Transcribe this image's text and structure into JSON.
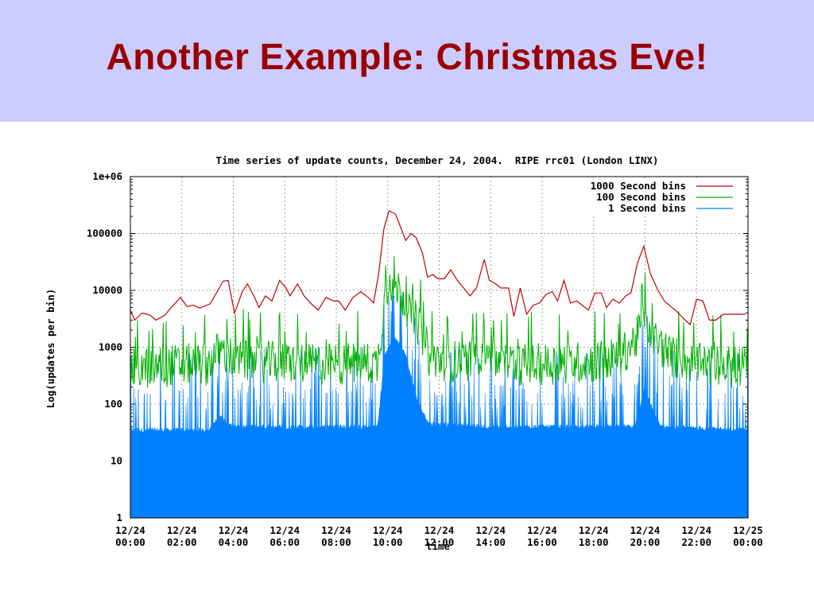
{
  "slide": {
    "title": "Another Example: Christmas Eve!"
  },
  "colors": {
    "header_bg": "#ccccff",
    "title": "#990000",
    "series_1000": "#c00000",
    "series_100": "#00b000",
    "series_1": "#0080ff"
  },
  "chart_data": {
    "type": "line",
    "title": "Time series of update counts, December 24, 2004.  RIPE rrc01 (London LINX)",
    "xlabel": "time",
    "ylabel": "Log(updates per bin)",
    "yscale": "log",
    "ylim": [
      1,
      1000000
    ],
    "xlim_hours": [
      0,
      24
    ],
    "grid": true,
    "legend_position": "top-right",
    "y_ticks": [
      {
        "value": 1,
        "label": "1"
      },
      {
        "value": 10,
        "label": "10"
      },
      {
        "value": 100,
        "label": "100"
      },
      {
        "value": 1000,
        "label": "1000"
      },
      {
        "value": 10000,
        "label": "10000"
      },
      {
        "value": 100000,
        "label": "100000"
      },
      {
        "value": 1000000,
        "label": "1e+06"
      }
    ],
    "x_ticks": [
      {
        "hour": 0,
        "date": "12/24",
        "time": "00:00"
      },
      {
        "hour": 2,
        "date": "12/24",
        "time": "02:00"
      },
      {
        "hour": 4,
        "date": "12/24",
        "time": "04:00"
      },
      {
        "hour": 6,
        "date": "12/24",
        "time": "06:00"
      },
      {
        "hour": 8,
        "date": "12/24",
        "time": "08:00"
      },
      {
        "hour": 10,
        "date": "12/24",
        "time": "10:00"
      },
      {
        "hour": 12,
        "date": "12/24",
        "time": "12:00"
      },
      {
        "hour": 14,
        "date": "12/24",
        "time": "14:00"
      },
      {
        "hour": 16,
        "date": "12/24",
        "time": "16:00"
      },
      {
        "hour": 18,
        "date": "12/24",
        "time": "18:00"
      },
      {
        "hour": 20,
        "date": "12/24",
        "time": "20:00"
      },
      {
        "hour": 22,
        "date": "12/24",
        "time": "22:00"
      },
      {
        "hour": 24,
        "date": "12/25",
        "time": "00:00"
      }
    ],
    "series": [
      {
        "name": "1000 Second bins",
        "color": "#c00000",
        "points": [
          [
            0,
            4500
          ],
          [
            0.17,
            3000
          ],
          [
            0.45,
            4000
          ],
          [
            0.75,
            3700
          ],
          [
            1.0,
            3000
          ],
          [
            1.35,
            3700
          ],
          [
            1.55,
            4800
          ],
          [
            1.95,
            7500
          ],
          [
            2.2,
            5200
          ],
          [
            2.45,
            5500
          ],
          [
            2.7,
            4900
          ],
          [
            3.1,
            5800
          ],
          [
            3.4,
            10000
          ],
          [
            3.6,
            14500
          ],
          [
            3.8,
            15000
          ],
          [
            4.05,
            4000
          ],
          [
            4.35,
            9500
          ],
          [
            4.55,
            13000
          ],
          [
            4.8,
            8000
          ],
          [
            5.0,
            5000
          ],
          [
            5.25,
            8000
          ],
          [
            5.5,
            6500
          ],
          [
            5.8,
            15000
          ],
          [
            6.05,
            11000
          ],
          [
            6.2,
            8000
          ],
          [
            6.5,
            13000
          ],
          [
            6.75,
            8000
          ],
          [
            7.0,
            6000
          ],
          [
            7.3,
            4500
          ],
          [
            7.6,
            7500
          ],
          [
            7.9,
            6500
          ],
          [
            8.1,
            6500
          ],
          [
            8.35,
            4500
          ],
          [
            8.65,
            7500
          ],
          [
            8.95,
            9500
          ],
          [
            9.25,
            7500
          ],
          [
            9.45,
            6000
          ],
          [
            9.65,
            20000
          ],
          [
            9.85,
            120000
          ],
          [
            10.05,
            250000
          ],
          [
            10.3,
            220000
          ],
          [
            10.5,
            130000
          ],
          [
            10.7,
            75000
          ],
          [
            10.9,
            100000
          ],
          [
            11.1,
            85000
          ],
          [
            11.35,
            45000
          ],
          [
            11.55,
            17000
          ],
          [
            11.75,
            19000
          ],
          [
            11.95,
            16000
          ],
          [
            12.2,
            16000
          ],
          [
            12.45,
            23000
          ],
          [
            12.7,
            15000
          ],
          [
            12.95,
            11000
          ],
          [
            13.2,
            8000
          ],
          [
            13.45,
            11000
          ],
          [
            13.75,
            35000
          ],
          [
            13.95,
            15000
          ],
          [
            14.2,
            13000
          ],
          [
            14.4,
            11000
          ],
          [
            14.7,
            11000
          ],
          [
            14.9,
            3500
          ],
          [
            15.15,
            11000
          ],
          [
            15.4,
            3800
          ],
          [
            15.65,
            5500
          ],
          [
            15.9,
            6000
          ],
          [
            16.15,
            8500
          ],
          [
            16.4,
            9500
          ],
          [
            16.6,
            6500
          ],
          [
            16.85,
            15000
          ],
          [
            17.1,
            6000
          ],
          [
            17.35,
            6500
          ],
          [
            17.55,
            5500
          ],
          [
            17.8,
            4500
          ],
          [
            18.05,
            9000
          ],
          [
            18.3,
            9000
          ],
          [
            18.5,
            5000
          ],
          [
            18.75,
            7000
          ],
          [
            19.0,
            6000
          ],
          [
            19.25,
            8000
          ],
          [
            19.45,
            9000
          ],
          [
            19.7,
            30000
          ],
          [
            19.95,
            60000
          ],
          [
            20.2,
            20000
          ],
          [
            20.5,
            10000
          ],
          [
            20.75,
            6500
          ],
          [
            21.0,
            5200
          ],
          [
            21.3,
            4000
          ],
          [
            21.55,
            3000
          ],
          [
            21.75,
            2500
          ],
          [
            22.0,
            7000
          ],
          [
            22.25,
            6500
          ],
          [
            22.5,
            3000
          ],
          [
            22.75,
            3000
          ],
          [
            23.05,
            3800
          ],
          [
            23.4,
            3800
          ],
          [
            23.65,
            3800
          ],
          [
            23.9,
            3800
          ]
        ]
      },
      {
        "name": "100 Second bins",
        "color": "#00b000",
        "baseline": [
          [
            0,
            400
          ],
          [
            1,
            450
          ],
          [
            2,
            500
          ],
          [
            3,
            500
          ],
          [
            3.5,
            900
          ],
          [
            4,
            600
          ],
          [
            5,
            550
          ],
          [
            6,
            550
          ],
          [
            7,
            500
          ],
          [
            8,
            500
          ],
          [
            9,
            550
          ],
          [
            9.6,
            500
          ],
          [
            9.9,
            8000
          ],
          [
            10.2,
            15000
          ],
          [
            10.5,
            9000
          ],
          [
            10.9,
            4000
          ],
          [
            11.3,
            2000
          ],
          [
            11.6,
            700
          ],
          [
            12,
            600
          ],
          [
            13,
            550
          ],
          [
            13.8,
            900
          ],
          [
            14.2,
            600
          ],
          [
            15,
            500
          ],
          [
            16,
            500
          ],
          [
            17,
            550
          ],
          [
            18,
            550
          ],
          [
            19,
            650
          ],
          [
            19.7,
            1500
          ],
          [
            20,
            4000
          ],
          [
            20.3,
            1500
          ],
          [
            21,
            700
          ],
          [
            22,
            500
          ],
          [
            23,
            450
          ],
          [
            24,
            450
          ]
        ],
        "range": [
          150,
          40000
        ]
      },
      {
        "name": "1 Second bins",
        "color": "#0080ff",
        "baseline": [
          [
            0,
            35
          ],
          [
            3,
            35
          ],
          [
            3.5,
            60
          ],
          [
            4,
            40
          ],
          [
            9.6,
            40
          ],
          [
            9.9,
            800
          ],
          [
            10.3,
            1500
          ],
          [
            10.7,
            700
          ],
          [
            11,
            200
          ],
          [
            11.3,
            80
          ],
          [
            11.6,
            45
          ],
          [
            14,
            40
          ],
          [
            19.6,
            40
          ],
          [
            20,
            200
          ],
          [
            20.3,
            80
          ],
          [
            20.6,
            40
          ],
          [
            24,
            35
          ]
        ],
        "range": [
          30,
          8000
        ]
      }
    ]
  }
}
